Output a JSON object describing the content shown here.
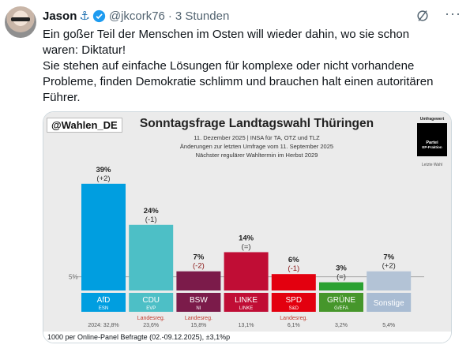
{
  "post": {
    "author_name": "Jason",
    "author_badge_icon": "anchor-icon",
    "handle": "@jkcork76",
    "separator": "·",
    "time": "3 Stunden",
    "text_lines": [
      "Ein goßer Teil der Menschen im Osten will wieder dahin, wo sie schon",
      "waren: Diktatur!",
      "Sie stehen auf einfache Lösungen für komplexe oder nicht vorhandene",
      "Probleme, finden Demokratie schlimm und brauchen halt einen autoritären",
      "Führer."
    ]
  },
  "chart_data": {
    "type": "bar",
    "brand": "@Wahlen_DE",
    "title": "Sonntagsfrage Landtagswahl Thüringen",
    "subtitle_lines": [
      "11. Dezember 2025 | INSA für TA, OTZ und TLZ",
      "Änderungen zur letzten Umfrage vom 11. September 2025",
      "Nächster regulärer Wahltermin im Herbst 2029"
    ],
    "legend": {
      "title": "Umfragewert",
      "label": "Partei",
      "sublabel": "EP-Fraktion",
      "note": "Letzte Wahl"
    },
    "threshold_label": "5%",
    "threshold": 5,
    "ylim": [
      0,
      45
    ],
    "prev_prefix": "2024: ",
    "categories": [
      "AfD",
      "CDU",
      "BSW",
      "LINKE",
      "SPD",
      "GRÜNE",
      "Sonstige"
    ],
    "sublabels": [
      "ESN",
      "EVP",
      "NI",
      "LINKE",
      "S&D",
      "G/EFA",
      ""
    ],
    "values": [
      39,
      24,
      7,
      14,
      6,
      3,
      7
    ],
    "value_labels": [
      "39%",
      "24%",
      "7%",
      "14%",
      "6%",
      "3%",
      "7%"
    ],
    "changes": [
      "(+2)",
      "(-1)",
      "(-2)",
      "(=)",
      "(-1)",
      "(=)",
      "(+2)"
    ],
    "last_election": [
      "32,8%",
      "23,6%",
      "15,8%",
      "13,1%",
      "6,1%",
      "3,2%",
      "5,4%"
    ],
    "government_note": [
      "",
      "Landesreg.",
      "Landesreg.",
      "",
      "Landesreg.",
      "",
      ""
    ],
    "colors": {
      "bars": [
        "#009ee0",
        "#4dbfc6",
        "#7b1b4a",
        "#c00d35",
        "#e3000f",
        "#2ba131",
        "#b3c3d6"
      ],
      "labels": [
        "#009ee0",
        "#4dbfc6",
        "#7b1b4a",
        "#c00d35",
        "#e3000f",
        "#46962b",
        "#a9bcd3"
      ],
      "change_text": [
        "#333333",
        "#333333",
        "#8a1515",
        "#333333",
        "#8a1515",
        "#333333",
        "#333333"
      ]
    }
  },
  "chart_footer": "1000 per Online-Panel Befragte (02.-09.12.2025), ±3,1%p"
}
